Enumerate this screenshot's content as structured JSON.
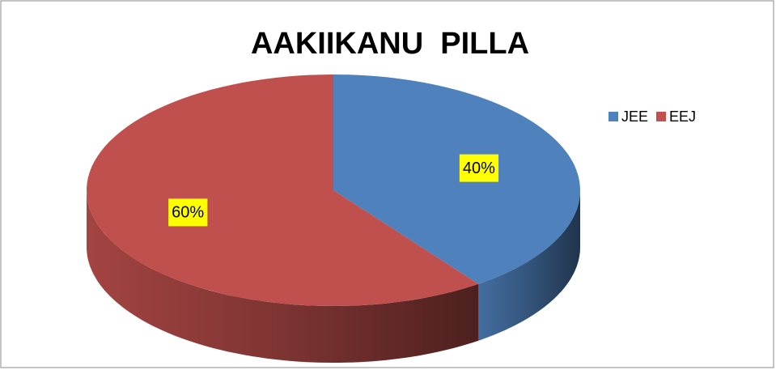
{
  "chart_data": {
    "type": "pie",
    "title": "AAKIIKANU  PILLA",
    "categories": [
      "JEE",
      "EEJ"
    ],
    "values": [
      40,
      60
    ],
    "value_labels": [
      "40%",
      "60%"
    ],
    "colors": [
      "#4f81bd",
      "#c0504d"
    ],
    "legend": "right"
  }
}
